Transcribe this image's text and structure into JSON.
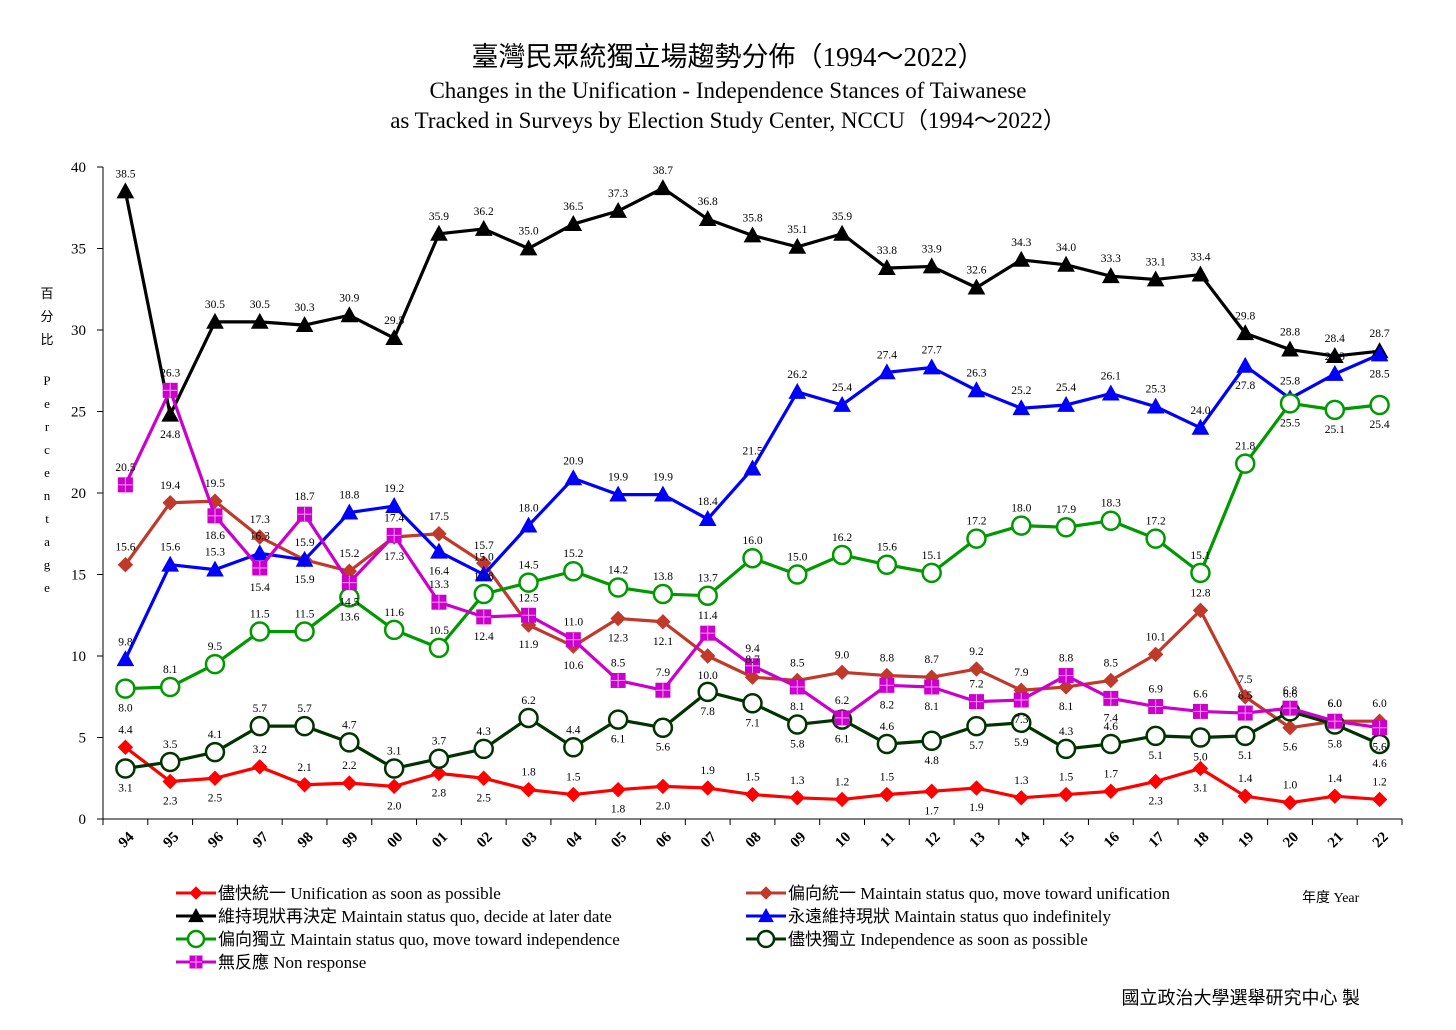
{
  "chart_data": {
    "type": "line",
    "title": "臺灣民眾統獨立場趨勢分佈（1994～2022）",
    "subtitle_1": "Changes in the Unification - Independence Stances of Taiwanese",
    "subtitle_2": "as Tracked in Surveys by Election Study Center, NCCU（1994～2022）",
    "ylabel_chars": [
      "百",
      "分",
      "比",
      "P",
      "e",
      "r",
      "c",
      "e",
      "n",
      "t",
      "a",
      "g",
      "e"
    ],
    "xlabel": "年度 Year",
    "ylim": [
      0,
      40
    ],
    "yticks": [
      0,
      5,
      10,
      15,
      20,
      25,
      30,
      35,
      40
    ],
    "grid": false,
    "legend_position": "bottom",
    "categories": [
      "94",
      "95",
      "96",
      "97",
      "98",
      "99",
      "00",
      "01",
      "02",
      "03",
      "04",
      "05",
      "06",
      "07",
      "08",
      "09",
      "10",
      "11",
      "12",
      "13",
      "14",
      "15",
      "16",
      "17",
      "18",
      "19",
      "20",
      "21",
      "22"
    ],
    "series": [
      {
        "name": "儘快統一 Unification as soon as possible",
        "color": "#ff0000",
        "marker": "diamond",
        "values": [
          4.4,
          2.3,
          2.5,
          3.2,
          2.1,
          2.2,
          2.0,
          2.8,
          2.5,
          1.8,
          1.5,
          1.8,
          2.0,
          1.9,
          1.5,
          1.3,
          1.2,
          1.5,
          1.7,
          1.9,
          1.3,
          1.5,
          1.7,
          2.3,
          3.1,
          1.4,
          1.0,
          1.4,
          1.2
        ],
        "label_pos": [
          "a",
          "b",
          "b",
          "a",
          "a",
          "a",
          "b",
          "b",
          "b",
          "a",
          "a",
          "b",
          "b",
          "a",
          "a",
          "a",
          "a",
          "a",
          "b",
          "b",
          "a",
          "a",
          "a",
          "b",
          "b",
          "a",
          "a",
          "a",
          "a"
        ]
      },
      {
        "name": "偏向統一 Maintain status quo, move toward unification",
        "color": "#c0392b",
        "marker": "diamond",
        "values": [
          15.6,
          19.4,
          19.5,
          17.3,
          15.9,
          15.2,
          17.3,
          17.5,
          15.7,
          11.9,
          10.6,
          12.3,
          12.1,
          10.0,
          8.7,
          8.5,
          9.0,
          8.8,
          8.7,
          9.2,
          7.9,
          8.1,
          8.5,
          10.1,
          12.8,
          7.5,
          5.6,
          6.0,
          6.0
        ],
        "label_pos": [
          "a",
          "a",
          "a",
          "a",
          "b",
          "a",
          "b",
          "a",
          "a",
          "b",
          "b",
          "b",
          "b",
          "b",
          "a",
          "a",
          "a",
          "a",
          "a",
          "a",
          "a",
          "b",
          "a",
          "a",
          "a",
          "a",
          "b",
          "a",
          "a"
        ]
      },
      {
        "name": "維持現狀再決定 Maintain status quo, decide at later date",
        "color": "#000000",
        "marker": "triangle",
        "values": [
          38.5,
          24.8,
          30.5,
          30.5,
          30.3,
          30.9,
          29.5,
          35.9,
          36.2,
          35.0,
          36.5,
          37.3,
          38.7,
          36.8,
          35.8,
          35.1,
          35.9,
          33.8,
          33.9,
          32.6,
          34.3,
          34.0,
          33.3,
          33.1,
          33.4,
          29.8,
          28.8,
          28.4,
          28.7
        ],
        "label_pos": [
          "a",
          "b",
          "a",
          "a",
          "a",
          "a",
          "a",
          "a",
          "a",
          "a",
          "a",
          "a",
          "a",
          "a",
          "a",
          "a",
          "a",
          "a",
          "a",
          "a",
          "a",
          "a",
          "a",
          "a",
          "a",
          "a",
          "a",
          "a",
          "a"
        ]
      },
      {
        "name": "永遠維持現狀 Maintain status quo indefinitely",
        "color": "#0000ff",
        "marker": "triangle",
        "values": [
          9.8,
          15.6,
          15.3,
          16.3,
          15.9,
          18.8,
          19.2,
          16.4,
          15.0,
          18.0,
          20.9,
          19.9,
          19.9,
          18.4,
          21.5,
          26.2,
          25.4,
          27.4,
          27.7,
          26.3,
          25.2,
          25.4,
          26.1,
          25.3,
          24.0,
          27.8,
          25.8,
          27.3,
          28.5
        ],
        "label_pos": [
          "a",
          "a",
          "a",
          "a",
          "a",
          "a",
          "a",
          "b",
          "a",
          "a",
          "a",
          "a",
          "a",
          "a",
          "a",
          "a",
          "a",
          "a",
          "a",
          "a",
          "a",
          "a",
          "a",
          "a",
          "a",
          "b",
          "a",
          "a",
          "b"
        ]
      },
      {
        "name": "偏向獨立 Maintain status quo, move toward independence",
        "color": "#009900",
        "marker": "circle",
        "values": [
          8.0,
          8.1,
          9.5,
          11.5,
          11.5,
          13.6,
          11.6,
          10.5,
          13.8,
          14.5,
          15.2,
          14.2,
          13.8,
          13.7,
          16.0,
          15.0,
          16.2,
          15.6,
          15.1,
          17.2,
          18.0,
          17.9,
          18.3,
          17.2,
          15.1,
          21.8,
          25.5,
          25.1,
          25.4
        ],
        "label_pos": [
          "b",
          "a",
          "a",
          "a",
          "a",
          "b",
          "a",
          "a",
          "a",
          "a",
          "a",
          "a",
          "a",
          "a",
          "a",
          "a",
          "a",
          "a",
          "a",
          "a",
          "a",
          "a",
          "a",
          "a",
          "a",
          "a",
          "b",
          "b",
          "b"
        ]
      },
      {
        "name": "儘快獨立 Independence as soon as possible",
        "color": "#003300",
        "marker": "circle",
        "values": [
          3.1,
          3.5,
          4.1,
          5.7,
          5.7,
          4.7,
          3.1,
          3.7,
          4.3,
          6.2,
          4.4,
          6.1,
          5.6,
          7.8,
          7.1,
          5.8,
          6.1,
          4.6,
          4.8,
          5.7,
          5.9,
          4.3,
          4.6,
          5.1,
          5.0,
          5.1,
          6.6,
          5.8,
          4.6
        ],
        "label_pos": [
          "b",
          "a",
          "a",
          "a",
          "a",
          "a",
          "a",
          "a",
          "a",
          "a",
          "a",
          "b",
          "b",
          "b",
          "b",
          "b",
          "b",
          "a",
          "b",
          "b",
          "b",
          "a",
          "a",
          "b",
          "b",
          "b",
          "a",
          "b",
          "b"
        ]
      },
      {
        "name": "無反應 Non response",
        "color": "#cc00cc",
        "marker": "square",
        "values": [
          20.5,
          26.3,
          18.6,
          15.4,
          18.7,
          14.5,
          17.4,
          13.3,
          12.4,
          12.5,
          11.0,
          8.5,
          7.9,
          11.4,
          9.4,
          8.1,
          6.2,
          8.2,
          8.1,
          7.2,
          7.3,
          8.8,
          7.4,
          6.9,
          6.6,
          6.5,
          6.8,
          6.0,
          5.6
        ],
        "label_pos": [
          "a",
          "a",
          "b",
          "b",
          "a",
          "b",
          "a",
          "a",
          "b",
          "a",
          "a",
          "a",
          "a",
          "a",
          "a",
          "b",
          "a",
          "b",
          "b",
          "a",
          "b",
          "a",
          "b",
          "a",
          "a",
          "a",
          "a",
          "a",
          "b"
        ]
      }
    ]
  },
  "footer": {
    "credit": "國立政治大學選舉研究中心 製"
  }
}
